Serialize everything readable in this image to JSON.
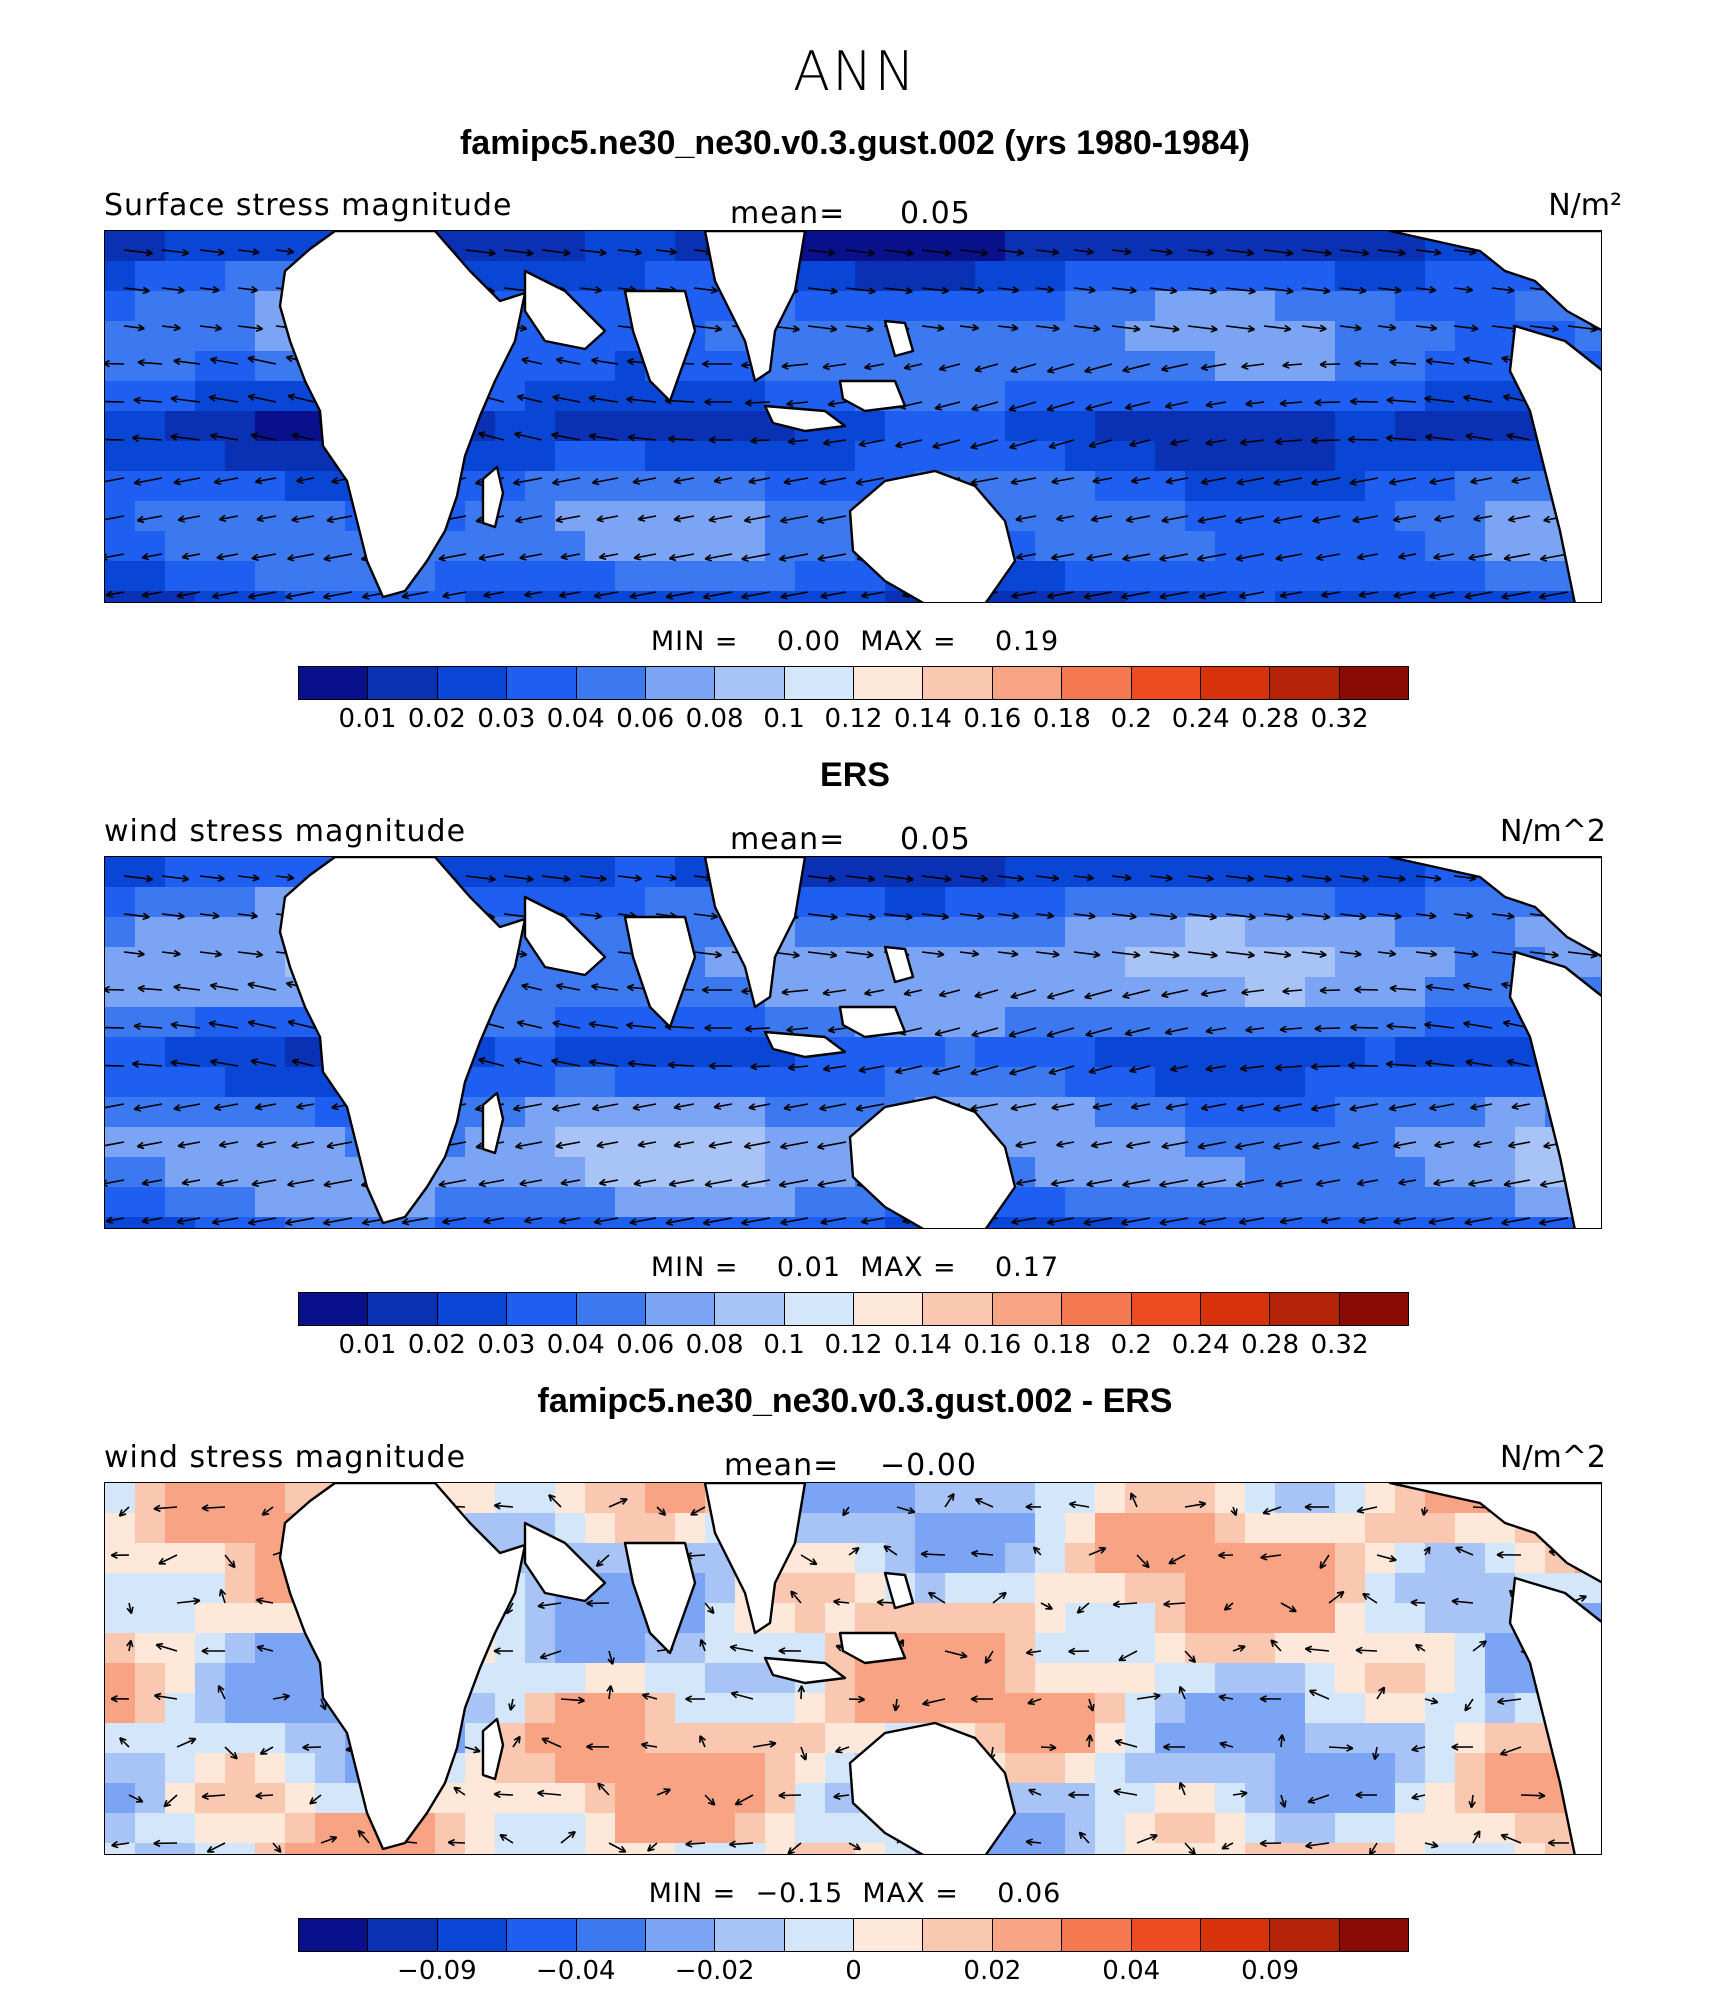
{
  "title": "ANN",
  "colors": [
    "#08108c",
    "#0a30b4",
    "#0a46d6",
    "#1e5ef0",
    "#3c78f0",
    "#7ca4f4",
    "#a8c4f6",
    "#d4e6fa",
    "#fde8da",
    "#fac8b0",
    "#f8a484",
    "#f47850",
    "#ee4c22",
    "#d8320c",
    "#b42208",
    "#8a0a04"
  ],
  "land_color": "#ffffff",
  "panels": [
    {
      "title": "famipc5.ne30_ne30.v0.3.gust.002 (yrs 1980-1984)",
      "variable": "Surface stress magnitude",
      "mean_label": "mean=",
      "mean_value": "0.05",
      "units": "N/m²",
      "min_label": "MIN =",
      "min_value": "0.00",
      "max_label": "MAX =",
      "max_value": "0.19",
      "levels": [
        "0.01",
        "0.02",
        "0.03",
        "0.04",
        "0.06",
        "0.08",
        "0.1",
        "0.12",
        "0.14",
        "0.16",
        "0.18",
        "0.2",
        "0.24",
        "0.28",
        "0.32"
      ]
    },
    {
      "title": "ERS",
      "variable": "wind stress magnitude",
      "mean_label": "mean=",
      "mean_value": "0.05",
      "units": "N/m^2",
      "min_label": "MIN =",
      "min_value": "0.01",
      "max_label": "MAX =",
      "max_value": "0.17",
      "levels": [
        "0.01",
        "0.02",
        "0.03",
        "0.04",
        "0.06",
        "0.08",
        "0.1",
        "0.12",
        "0.14",
        "0.16",
        "0.18",
        "0.2",
        "0.24",
        "0.28",
        "0.32"
      ]
    },
    {
      "title": "famipc5.ne30_ne30.v0.3.gust.002 - ERS",
      "variable": "wind stress magnitude",
      "mean_label": "mean=",
      "mean_value": "−0.00",
      "units": "N/m^2",
      "min_label": "MIN =",
      "min_value": "−0.15",
      "max_label": "MAX =",
      "max_value": "0.06",
      "levels": [
        "",
        "−0.09",
        "",
        "−0.04",
        "",
        "−0.02",
        "",
        "0",
        "",
        "0.02",
        "",
        "0.04",
        "",
        "0.09",
        ""
      ]
    }
  ]
}
